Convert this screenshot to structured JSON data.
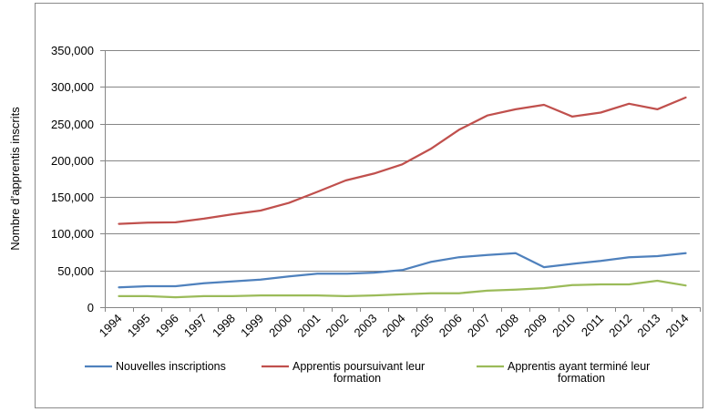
{
  "chart_data": {
    "type": "line",
    "title": "",
    "xlabel": "",
    "ylabel": "Nombre d’apprentis inscrits",
    "categories": [
      "1994",
      "1995",
      "1996",
      "1997",
      "1998",
      "1999",
      "2000",
      "2001",
      "2002",
      "2003",
      "2004",
      "2005",
      "2006",
      "2007",
      "2008",
      "2009",
      "2010",
      "2011",
      "2012",
      "2013",
      "2014"
    ],
    "ylim": [
      0,
      350000
    ],
    "yticks": [
      0,
      50000,
      100000,
      150000,
      200000,
      250000,
      300000,
      350000
    ],
    "ytick_labels": [
      "0",
      "50,000",
      "100,000",
      "150,000",
      "200,000",
      "250,000",
      "300,000",
      "350,000"
    ],
    "grid": true,
    "legend": "bottom",
    "series": [
      {
        "name": "Nouvelles inscriptions",
        "color": "#4F81BD",
        "values": [
          27000,
          28500,
          28500,
          32500,
          35000,
          37500,
          42000,
          45500,
          45500,
          47000,
          50500,
          61500,
          68000,
          71000,
          73500,
          54500,
          59000,
          63000,
          68000,
          69500,
          73500
        ]
      },
      {
        "name": "Apprentis poursuivant leur formation",
        "color": "#C0504D",
        "values": [
          113500,
          115000,
          115500,
          120500,
          126500,
          131500,
          142000,
          157000,
          172500,
          182000,
          194500,
          215500,
          241500,
          261000,
          269500,
          275500,
          259500,
          265000,
          277000,
          269500,
          285500
        ]
      },
      {
        "name": "Apprentis ayant terminé leur formation",
        "color": "#9BBB59",
        "values": [
          15000,
          15000,
          13500,
          15000,
          15000,
          16000,
          16000,
          16000,
          15000,
          16000,
          17500,
          19000,
          19000,
          22500,
          24000,
          26000,
          30000,
          31000,
          31000,
          36000,
          29500
        ]
      }
    ]
  }
}
